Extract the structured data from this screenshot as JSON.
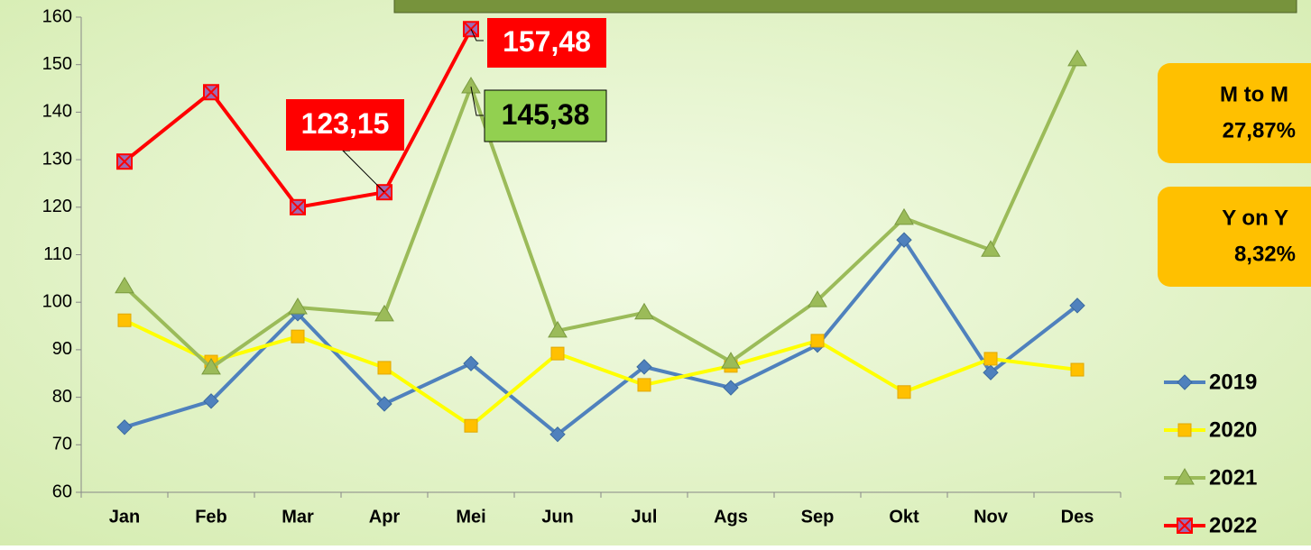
{
  "chart_data": {
    "type": "line",
    "categories": [
      "Jan",
      "Feb",
      "Mar",
      "Apr",
      "Mei",
      "Jun",
      "Jul",
      "Ags",
      "Sep",
      "Okt",
      "Nov",
      "Des"
    ],
    "ylim": [
      60,
      160
    ],
    "yticks": [
      60,
      70,
      80,
      90,
      100,
      110,
      120,
      130,
      140,
      150,
      160
    ],
    "legend": "right",
    "series": [
      {
        "name": "2019",
        "color": "#4f81bd",
        "marker": "diamond",
        "values": [
          73.7,
          79.2,
          97.6,
          78.6,
          87.1,
          72.2,
          86.4,
          82,
          91,
          113.1,
          85.2,
          99.3
        ]
      },
      {
        "name": "2020",
        "color": "#ffff00",
        "marker": "square",
        "values": [
          96.2,
          87.5,
          92.8,
          86.2,
          74,
          89.2,
          82.6,
          86.6,
          91.9,
          81.1,
          88.1,
          85.8
        ]
      },
      {
        "name": "2021",
        "color": "#9bbb59",
        "marker": "triangle",
        "values": [
          103.3,
          86.2,
          98.9,
          97.4,
          145.38,
          94,
          97.8,
          87.5,
          100.4,
          117.7,
          111,
          151.1
        ],
        "value_labels": [
          null,
          null,
          null,
          null,
          "145,38",
          null,
          null,
          null,
          null,
          null,
          null,
          null
        ]
      },
      {
        "name": "2022",
        "color": "#ff0000",
        "marker": "x-square",
        "values": [
          129.6,
          144.2,
          120,
          123.15,
          157.48,
          null,
          null,
          null,
          null,
          null,
          null,
          null
        ],
        "value_labels": [
          null,
          null,
          null,
          "123,15",
          "157,48",
          null,
          null,
          null,
          null,
          null,
          null,
          null
        ]
      }
    ],
    "side_boxes": [
      {
        "title": "M to M",
        "value": "27,87%"
      },
      {
        "title": "Y on Y",
        "value": "8,32%"
      }
    ]
  }
}
